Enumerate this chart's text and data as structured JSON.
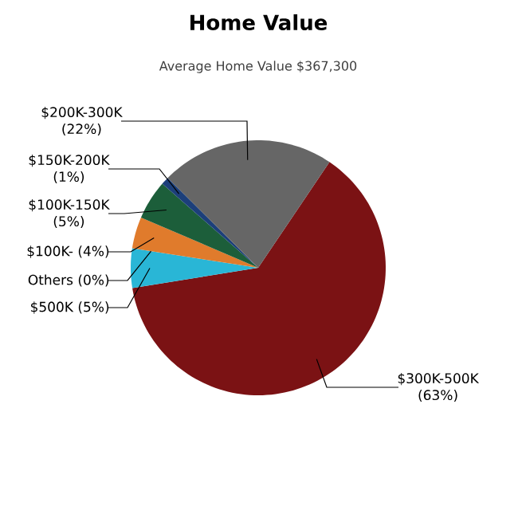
{
  "chart_data": {
    "type": "pie",
    "title": "Home Value",
    "subtitle": "Average Home Value  $367,300",
    "categories": [
      "$300K-500K",
      "$500K",
      "Others",
      "$100K-",
      "$100K-150K",
      "$150K-200K",
      "$200K-300K"
    ],
    "values": [
      63,
      5,
      0,
      4,
      5,
      1,
      22
    ],
    "value_labels": [
      "(63%)",
      "(5%)",
      "(0%)",
      "(4%)",
      "(5%)",
      "(1%)",
      "(22%)"
    ],
    "colors": [
      "#7b1214",
      "#29b6d6",
      "#8a8a8a",
      "#e07b2c",
      "#1c5e3a",
      "#1c3f7a",
      "#666666"
    ]
  }
}
